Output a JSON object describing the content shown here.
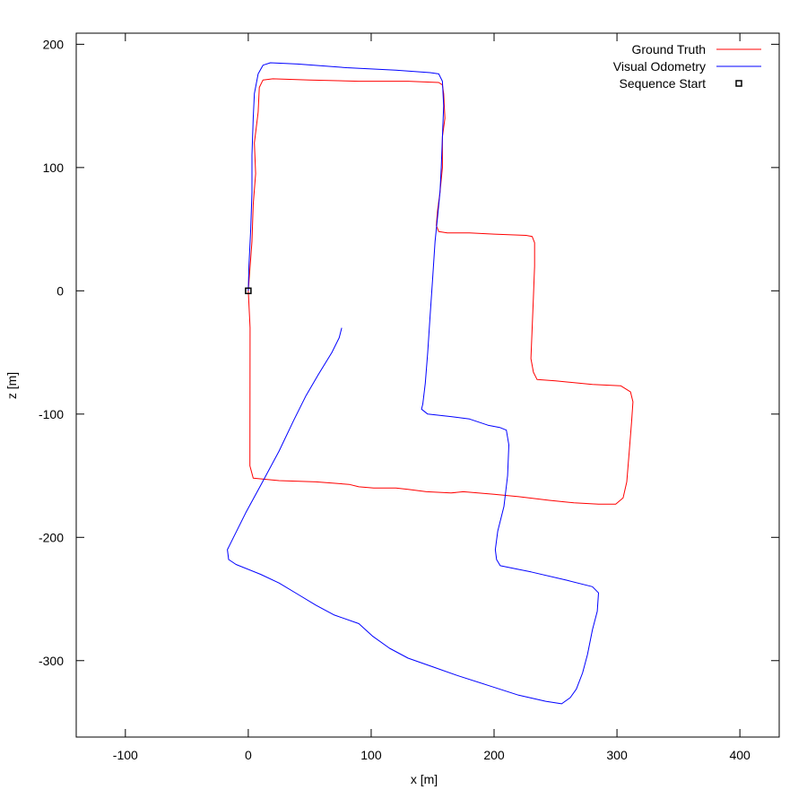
{
  "chart_data": {
    "type": "line",
    "xlabel": "x [m]",
    "ylabel": "z [m]",
    "xlim": [
      -140,
      432
    ],
    "ylim": [
      -362,
      209
    ],
    "xticks": [
      -100,
      0,
      100,
      200,
      300,
      400
    ],
    "yticks": [
      200,
      100,
      0,
      -100,
      -200,
      -300
    ],
    "grid": false,
    "legend_position": "top-right",
    "series": [
      {
        "name": "Ground Truth",
        "color": "#ff0000",
        "points": [
          [
            0,
            0
          ],
          [
            1.5,
            -30
          ],
          [
            1.4,
            -90
          ],
          [
            1.3,
            -142
          ],
          [
            4,
            -152
          ],
          [
            25,
            -154
          ],
          [
            55,
            -155
          ],
          [
            82,
            -157
          ],
          [
            90,
            -159
          ],
          [
            102,
            -160
          ],
          [
            120,
            -160
          ],
          [
            130,
            -161
          ],
          [
            145,
            -163
          ],
          [
            165,
            -164
          ],
          [
            175,
            -163
          ],
          [
            200,
            -165
          ],
          [
            220,
            -167
          ],
          [
            245,
            -170
          ],
          [
            265,
            -172
          ],
          [
            285,
            -173
          ],
          [
            299,
            -173
          ],
          [
            305,
            -168
          ],
          [
            308,
            -155
          ],
          [
            310,
            -130
          ],
          [
            312,
            -105
          ],
          [
            313,
            -90
          ],
          [
            311,
            -82
          ],
          [
            303,
            -77
          ],
          [
            280,
            -76
          ],
          [
            250,
            -73
          ],
          [
            235,
            -72
          ],
          [
            232,
            -66
          ],
          [
            230,
            -55
          ],
          [
            231,
            -30
          ],
          [
            232,
            -5
          ],
          [
            233,
            20
          ],
          [
            233,
            39
          ],
          [
            231,
            44
          ],
          [
            226,
            45
          ],
          [
            200,
            46
          ],
          [
            180,
            47
          ],
          [
            162,
            47
          ],
          [
            155,
            48
          ],
          [
            153,
            53
          ],
          [
            154,
            65
          ],
          [
            156,
            80
          ],
          [
            158,
            100
          ],
          [
            158,
            125
          ],
          [
            160,
            140
          ],
          [
            159,
            160
          ],
          [
            158,
            167
          ],
          [
            155,
            169
          ],
          [
            130,
            170
          ],
          [
            90,
            170
          ],
          [
            50,
            171
          ],
          [
            20,
            172
          ],
          [
            12,
            171
          ],
          [
            9,
            165
          ],
          [
            8,
            145
          ],
          [
            5,
            120
          ],
          [
            6,
            95
          ],
          [
            4,
            70
          ],
          [
            3,
            40
          ],
          [
            0,
            0
          ]
        ]
      },
      {
        "name": "Visual Odometry",
        "color": "#0000ff",
        "points": [
          [
            0,
            0
          ],
          [
            0.5,
            20
          ],
          [
            2,
            50
          ],
          [
            3,
            80
          ],
          [
            3,
            110
          ],
          [
            4,
            140
          ],
          [
            5,
            160
          ],
          [
            8,
            176
          ],
          [
            12,
            183
          ],
          [
            18,
            185
          ],
          [
            40,
            184
          ],
          [
            80,
            181
          ],
          [
            120,
            179
          ],
          [
            148,
            177
          ],
          [
            155,
            176
          ],
          [
            158,
            170
          ],
          [
            159,
            150
          ],
          [
            158,
            125
          ],
          [
            157,
            100
          ],
          [
            156,
            80
          ],
          [
            154,
            60
          ],
          [
            152,
            40
          ],
          [
            150,
            10
          ],
          [
            148,
            -20
          ],
          [
            146,
            -50
          ],
          [
            144,
            -75
          ],
          [
            142,
            -92
          ],
          [
            141,
            -96
          ],
          [
            146,
            -100
          ],
          [
            165,
            -102
          ],
          [
            180,
            -104
          ],
          [
            195,
            -109
          ],
          [
            205,
            -111
          ],
          [
            210,
            -113
          ],
          [
            212,
            -125
          ],
          [
            211,
            -150
          ],
          [
            208,
            -175
          ],
          [
            203,
            -195
          ],
          [
            201,
            -210
          ],
          [
            202,
            -218
          ],
          [
            205,
            -223
          ],
          [
            230,
            -228
          ],
          [
            260,
            -235
          ],
          [
            280,
            -240
          ],
          [
            285,
            -245
          ],
          [
            284,
            -260
          ],
          [
            280,
            -275
          ],
          [
            276,
            -295
          ],
          [
            272,
            -310
          ],
          [
            267,
            -323
          ],
          [
            262,
            -330
          ],
          [
            255,
            -335
          ],
          [
            242,
            -333
          ],
          [
            220,
            -328
          ],
          [
            195,
            -320
          ],
          [
            170,
            -312
          ],
          [
            150,
            -305
          ],
          [
            130,
            -298
          ],
          [
            115,
            -290
          ],
          [
            101,
            -280
          ],
          [
            90,
            -270
          ],
          [
            70,
            -263
          ],
          [
            55,
            -255
          ],
          [
            40,
            -246
          ],
          [
            25,
            -237
          ],
          [
            10,
            -230
          ],
          [
            -10,
            -222
          ],
          [
            -16,
            -218
          ],
          [
            -17,
            -210
          ],
          [
            -12,
            -200
          ],
          [
            -2,
            -180
          ],
          [
            10,
            -158
          ],
          [
            25,
            -130
          ],
          [
            37,
            -105
          ],
          [
            47,
            -85
          ],
          [
            57,
            -68
          ],
          [
            68,
            -50
          ],
          [
            74,
            -38
          ],
          [
            76,
            -30
          ]
        ]
      }
    ],
    "markers": [
      {
        "name": "Sequence Start",
        "x": 0,
        "y": 0,
        "symbol": "square"
      }
    ]
  }
}
